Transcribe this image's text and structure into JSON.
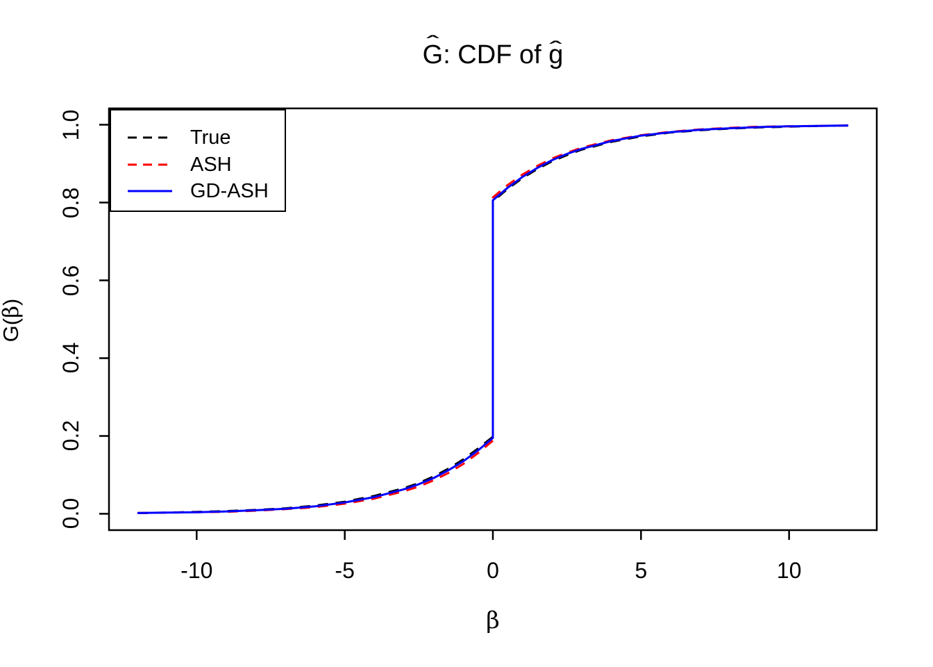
{
  "figure": {
    "title": {
      "text": "Ĝ: CDF of ĝ",
      "parts": {
        "G": "G",
        "hat": "ˆ",
        "mid": ": CDF of ",
        "g": "g"
      }
    },
    "xlabel": {
      "text": "β"
    },
    "ylabel": {
      "text": "Ĝ(β)",
      "parts": {
        "G": "G",
        "hat": "ˆ",
        "open": "(",
        "beta": "β",
        "close": ")"
      }
    }
  },
  "chart_data": {
    "type": "line",
    "title": "Ĝ: CDF of ĝ",
    "xlabel": "β",
    "ylabel": "Ĝ(β)",
    "xlim": [
      -12.96,
      12.96
    ],
    "ylim": [
      -0.042,
      1.042
    ],
    "x_ticks": [
      -10,
      -5,
      0,
      5,
      10
    ],
    "x_tick_labels": [
      "-10",
      "-5",
      "0",
      "5",
      "10"
    ],
    "y_ticks": [
      0,
      0.2,
      0.4,
      0.6,
      0.8,
      1
    ],
    "y_tick_labels": [
      "0.0",
      "0.2",
      "0.4",
      "0.6",
      "0.8",
      "1.0"
    ],
    "grid": false,
    "legend_position": "top-left",
    "description": "Step CDF: smooth tails with a jump at beta=0 from about 0.195 to about 0.806; all three curves nearly coincide.",
    "series": [
      {
        "name": "True",
        "color": "#000000",
        "line_style": "dashed",
        "x": [
          -12,
          -11,
          -10,
          -9,
          -8,
          -7,
          -6,
          -5,
          -4,
          -3,
          -2.5,
          -2,
          -1.5,
          -1,
          -0.5,
          0,
          0,
          0.5,
          1,
          1.5,
          2,
          2.5,
          3,
          4,
          5,
          6,
          7,
          8,
          9,
          10,
          11,
          12
        ],
        "y": [
          0.002,
          0.003,
          0.005,
          0.007,
          0.01,
          0.014,
          0.021,
          0.031,
          0.046,
          0.066,
          0.079,
          0.096,
          0.116,
          0.14,
          0.168,
          0.198,
          0.803,
          0.835,
          0.863,
          0.886,
          0.906,
          0.922,
          0.936,
          0.956,
          0.97,
          0.98,
          0.986,
          0.99,
          0.993,
          0.995,
          0.997,
          0.998
        ]
      },
      {
        "name": "ASH",
        "color": "#FF0000",
        "line_style": "dashed",
        "x": [
          -12,
          -11,
          -10,
          -9,
          -8,
          -7,
          -6,
          -5,
          -4,
          -3,
          -2.5,
          -2,
          -1.5,
          -1,
          -0.5,
          0,
          0,
          0.5,
          1,
          1.5,
          2,
          2.5,
          3,
          4,
          5,
          6,
          7,
          8,
          9,
          10,
          11,
          12
        ],
        "y": [
          0.002,
          0.003,
          0.004,
          0.005,
          0.008,
          0.012,
          0.017,
          0.026,
          0.039,
          0.058,
          0.07,
          0.086,
          0.105,
          0.128,
          0.156,
          0.188,
          0.813,
          0.845,
          0.872,
          0.894,
          0.913,
          0.928,
          0.941,
          0.96,
          0.973,
          0.982,
          0.988,
          0.992,
          0.995,
          0.996,
          0.997,
          0.998
        ]
      },
      {
        "name": "GD-ASH",
        "color": "#0000FF",
        "line_style": "solid",
        "x": [
          -12,
          -11,
          -10,
          -9,
          -8,
          -7,
          -6,
          -5,
          -4,
          -3,
          -2.5,
          -2,
          -1.5,
          -1,
          -0.5,
          0,
          0,
          0.5,
          1,
          1.5,
          2,
          2.5,
          3,
          4,
          5,
          6,
          7,
          8,
          9,
          10,
          11,
          12
        ],
        "y": [
          0.002,
          0.003,
          0.004,
          0.006,
          0.009,
          0.013,
          0.019,
          0.029,
          0.043,
          0.063,
          0.076,
          0.092,
          0.112,
          0.135,
          0.163,
          0.195,
          0.806,
          0.838,
          0.866,
          0.889,
          0.909,
          0.925,
          0.938,
          0.958,
          0.972,
          0.981,
          0.987,
          0.991,
          0.994,
          0.996,
          0.997,
          0.998
        ]
      }
    ]
  },
  "legend": {
    "entries": [
      {
        "label": "True",
        "color": "#000000",
        "style": "dashed"
      },
      {
        "label": "ASH",
        "color": "#FF0000",
        "style": "dashed"
      },
      {
        "label": "GD-ASH",
        "color": "#0000FF",
        "style": "solid"
      }
    ]
  }
}
